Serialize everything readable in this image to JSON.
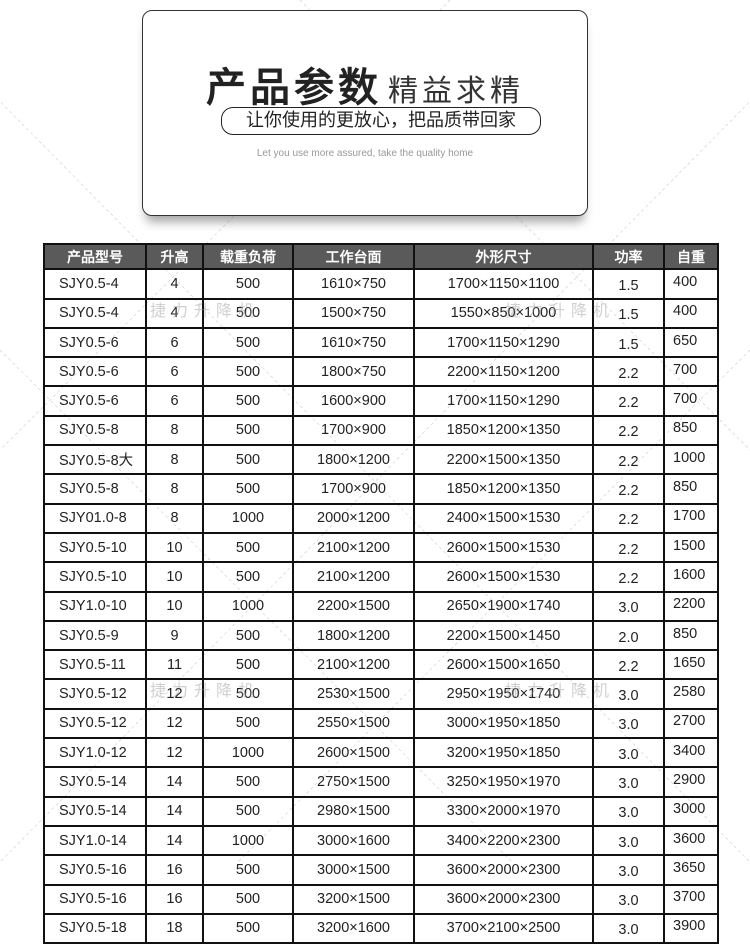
{
  "banner": {
    "title_main": "产品参数",
    "title_sub": "精益求精",
    "slogan": "让你使用的更放心，把品质带回家",
    "subtitle_en": "Let you use more assured, take the quality home"
  },
  "watermark": "捷力升降机",
  "table": {
    "headers": [
      "产品型号",
      "升高",
      "载重负荷",
      "工作台面",
      "外形尺寸",
      "功率",
      "自重"
    ],
    "rows": [
      [
        "SJY0.5-4",
        "4",
        "500",
        "1610×750",
        "1700×1150×1100",
        "1.5",
        "400"
      ],
      [
        "SJY0.5-4",
        "4",
        "500",
        "1500×750",
        "1550×850×1000",
        "1.5",
        "400"
      ],
      [
        "SJY0.5-6",
        "6",
        "500",
        "1610×750",
        "1700×1150×1290",
        "1.5",
        "650"
      ],
      [
        "SJY0.5-6",
        "6",
        "500",
        "1800×750",
        "2200×1150×1200",
        "2.2",
        "700"
      ],
      [
        "SJY0.5-6",
        "6",
        "500",
        "1600×900",
        "1700×1150×1290",
        "2.2",
        "700"
      ],
      [
        "SJY0.5-8",
        "8",
        "500",
        "1700×900",
        "1850×1200×1350",
        "2.2",
        "850"
      ],
      [
        "SJY0.5-8大",
        "8",
        "500",
        "1800×1200",
        "2200×1500×1350",
        "2.2",
        "1000"
      ],
      [
        "SJY0.5-8",
        "8",
        "500",
        "1700×900",
        "1850×1200×1350",
        "2.2",
        "850"
      ],
      [
        "SJY01.0-8",
        "8",
        "1000",
        "2000×1200",
        "2400×1500×1530",
        "2.2",
        "1700"
      ],
      [
        "SJY0.5-10",
        "10",
        "500",
        "2100×1200",
        "2600×1500×1530",
        "2.2",
        "1500"
      ],
      [
        "SJY0.5-10",
        "10",
        "500",
        "2100×1200",
        "2600×1500×1530",
        "2.2",
        "1600"
      ],
      [
        "SJY1.0-10",
        "10",
        "1000",
        "2200×1500",
        "2650×1900×1740",
        "3.0",
        "2200"
      ],
      [
        "SJY0.5-9",
        "9",
        "500",
        "1800×1200",
        "2200×1500×1450",
        "2.0",
        "850"
      ],
      [
        "SJY0.5-11",
        "11",
        "500",
        "2100×1200",
        "2600×1500×1650",
        "2.2",
        "1650"
      ],
      [
        "SJY0.5-12",
        "12",
        "500",
        "2530×1500",
        "2950×1950×1740",
        "3.0",
        "2580"
      ],
      [
        "SJY0.5-12",
        "12",
        "500",
        "2550×1500",
        "3000×1950×1850",
        "3.0",
        "2700"
      ],
      [
        "SJY1.0-12",
        "12",
        "1000",
        "2600×1500",
        "3200×1950×1850",
        "3.0",
        "3400"
      ],
      [
        "SJY0.5-14",
        "14",
        "500",
        "2750×1500",
        "3250×1950×1970",
        "3.0",
        "2900"
      ],
      [
        "SJY0.5-14",
        "14",
        "500",
        "2980×1500",
        "3300×2000×1970",
        "3.0",
        "3000"
      ],
      [
        "SJY1.0-14",
        "14",
        "1000",
        "3000×1600",
        "3400×2200×2300",
        "3.0",
        "3600"
      ],
      [
        "SJY0.5-16",
        "16",
        "500",
        "3000×1500",
        "3600×2000×2300",
        "3.0",
        "3650"
      ],
      [
        "SJY0.5-16",
        "16",
        "500",
        "3200×1500",
        "3600×2000×2300",
        "3.0",
        "3700"
      ],
      [
        "SJY0.5-18",
        "18",
        "500",
        "3200×1600",
        "3700×2100×2500",
        "3.0",
        "3900"
      ]
    ]
  }
}
